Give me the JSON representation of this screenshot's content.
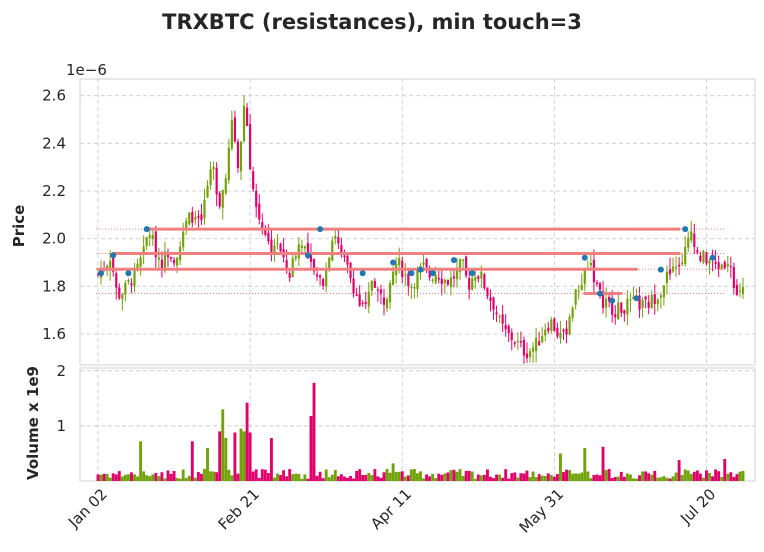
{
  "chart_data": {
    "type": "candlestick",
    "title": "TRXBTC (resistances), min touch=3",
    "price_panel": {
      "ylabel": "Price",
      "offset_label": "1e−6",
      "y_scale": 1e-06,
      "ylim": [
        1.47,
        2.67
      ],
      "yticks": [
        1.6,
        1.8,
        2.0,
        2.2,
        2.4,
        2.6
      ],
      "ytick_labels": [
        "1.6",
        "1.8",
        "2.0",
        "2.2",
        "2.4",
        "2.6"
      ],
      "up_color": "#72a20a",
      "down_color": "#e0006b",
      "close_path": [
        1.85,
        1.88,
        1.93,
        1.76,
        1.78,
        1.82,
        1.86,
        1.93,
        2.04,
        1.95,
        1.9,
        1.95,
        1.92,
        1.98,
        2.08,
        2.1,
        2.05,
        2.2,
        2.3,
        2.15,
        2.25,
        2.5,
        2.3,
        2.6,
        2.25,
        2.1,
        2.05,
        1.95,
        2.0,
        1.9,
        1.85,
        1.95,
        2.0,
        1.9,
        1.85,
        1.8,
        1.92,
        2.04,
        1.93,
        1.88,
        1.8,
        1.72,
        1.7,
        1.85,
        1.76,
        1.74,
        1.88,
        1.9,
        1.85,
        1.8,
        1.85,
        1.88,
        1.84,
        1.86,
        1.83,
        1.82,
        1.85,
        1.9,
        1.8,
        1.86,
        1.84,
        1.77,
        1.72,
        1.64,
        1.6,
        1.58,
        1.55,
        1.52,
        1.54,
        1.57,
        1.63,
        1.65,
        1.6,
        1.58,
        1.7,
        1.78,
        1.84,
        1.92,
        1.8,
        1.74,
        1.72,
        1.7,
        1.71,
        1.72,
        1.73,
        1.72,
        1.72,
        1.75,
        1.78,
        1.84,
        1.86,
        1.9,
        1.95,
        2.04,
        1.92,
        1.92,
        1.9,
        1.88,
        1.9,
        1.92,
        1.75,
        1.78
      ],
      "resistance_levels": [
        {
          "y": 2.04,
          "x_start": 16,
          "x_end": 191
        },
        {
          "y": 1.938,
          "x_start": 5,
          "x_end": 191
        },
        {
          "y": 1.872,
          "x_start": 0,
          "x_end": 177
        },
        {
          "y": 1.77,
          "x_start": 160,
          "x_end": 172
        }
      ],
      "dotted_levels": [
        2.04,
        1.938,
        1.872,
        1.77
      ],
      "touch_points": [
        {
          "x": 1,
          "y": 1.855
        },
        {
          "x": 5,
          "y": 1.93
        },
        {
          "x": 10,
          "y": 1.855
        },
        {
          "x": 16,
          "y": 2.04
        },
        {
          "x": 69,
          "y": 1.93
        },
        {
          "x": 73,
          "y": 2.04
        },
        {
          "x": 87,
          "y": 1.855
        },
        {
          "x": 97,
          "y": 1.9
        },
        {
          "x": 103,
          "y": 1.855
        },
        {
          "x": 106,
          "y": 1.87
        },
        {
          "x": 110,
          "y": 1.855
        },
        {
          "x": 117,
          "y": 1.91
        },
        {
          "x": 123,
          "y": 1.855
        },
        {
          "x": 160,
          "y": 1.92
        },
        {
          "x": 165,
          "y": 1.77
        },
        {
          "x": 169,
          "y": 1.74
        },
        {
          "x": 177,
          "y": 1.75
        },
        {
          "x": 185,
          "y": 1.87
        },
        {
          "x": 193,
          "y": 2.04
        },
        {
          "x": 202,
          "y": 1.92
        }
      ]
    },
    "volume_panel": {
      "ylabel": "Volume x 1e9",
      "ylim": [
        0,
        2.05
      ],
      "yticks": [
        1,
        2
      ],
      "ytick_labels": [
        "1",
        "2"
      ],
      "spikes": [
        {
          "x": 14,
          "v": 0.72
        },
        {
          "x": 31,
          "v": 0.72
        },
        {
          "x": 36,
          "v": 0.6
        },
        {
          "x": 40,
          "v": 0.9
        },
        {
          "x": 41,
          "v": 1.3
        },
        {
          "x": 42,
          "v": 0.78
        },
        {
          "x": 45,
          "v": 0.88
        },
        {
          "x": 47,
          "v": 0.95
        },
        {
          "x": 48,
          "v": 0.9
        },
        {
          "x": 49,
          "v": 1.42
        },
        {
          "x": 50,
          "v": 0.88
        },
        {
          "x": 57,
          "v": 0.78
        },
        {
          "x": 70,
          "v": 1.18
        },
        {
          "x": 71,
          "v": 1.78
        },
        {
          "x": 97,
          "v": 0.32
        },
        {
          "x": 152,
          "v": 0.5
        },
        {
          "x": 160,
          "v": 0.6
        },
        {
          "x": 166,
          "v": 0.62
        },
        {
          "x": 191,
          "v": 0.38
        },
        {
          "x": 206,
          "v": 0.4
        }
      ]
    },
    "x_count": 213,
    "xticks": [
      {
        "x": 0,
        "label": "Jan 02"
      },
      {
        "x": 50,
        "label": "Feb 21"
      },
      {
        "x": 100,
        "label": "Apr 11"
      },
      {
        "x": 150,
        "label": "May 31"
      },
      {
        "x": 200,
        "label": "Jul 20"
      }
    ],
    "grid": true,
    "grid_color": "#cccccc",
    "line_color": "#f08080",
    "dot_color": "#1f77b4"
  }
}
